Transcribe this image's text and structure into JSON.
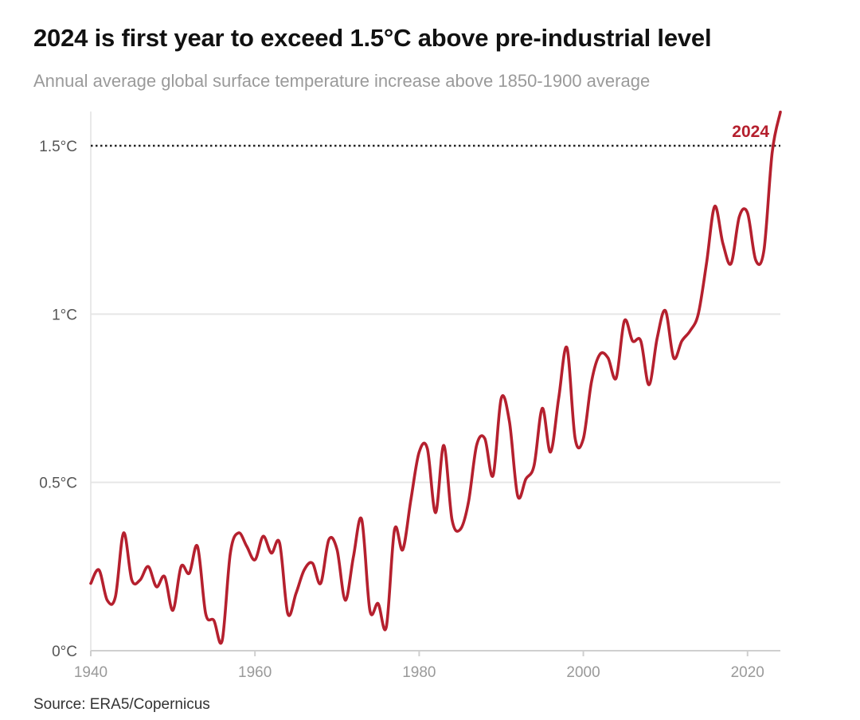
{
  "header": {
    "title": "2024 is first year to exceed 1.5°C above pre-industrial level",
    "subtitle": "Annual average global surface temperature increase above 1850-1900 average"
  },
  "footer": {
    "source": "Source: ERA5/Copernicus"
  },
  "colors": {
    "line": "#b5202e",
    "grid": "#e6e6e6",
    "threshold": "#222222"
  },
  "chart_data": {
    "type": "line",
    "title": "2024 is first year to exceed 1.5°C above pre-industrial level",
    "subtitle": "Annual average global surface temperature increase above 1850-1900 average",
    "xlabel": "",
    "ylabel": "",
    "xlim": [
      1940,
      2024
    ],
    "ylim": [
      0,
      1.6
    ],
    "grid": true,
    "y_ticks": [
      0,
      0.5,
      1,
      1.5
    ],
    "y_tick_labels": [
      "0°C",
      "0.5°C",
      "1°C",
      "1.5°C"
    ],
    "x_ticks": [
      1940,
      1960,
      1980,
      2000,
      2020
    ],
    "x_tick_labels": [
      "1940",
      "1960",
      "1980",
      "2000",
      "2020"
    ],
    "threshold": {
      "value": 1.5,
      "style": "dotted"
    },
    "annotation": {
      "text": "2024",
      "x": 2024,
      "y": 1.6
    },
    "x": [
      1940,
      1941,
      1942,
      1943,
      1944,
      1945,
      1946,
      1947,
      1948,
      1949,
      1950,
      1951,
      1952,
      1953,
      1954,
      1955,
      1956,
      1957,
      1958,
      1959,
      1960,
      1961,
      1962,
      1963,
      1964,
      1965,
      1966,
      1967,
      1968,
      1969,
      1970,
      1971,
      1972,
      1973,
      1974,
      1975,
      1976,
      1977,
      1978,
      1979,
      1980,
      1981,
      1982,
      1983,
      1984,
      1985,
      1986,
      1987,
      1988,
      1989,
      1990,
      1991,
      1992,
      1993,
      1994,
      1995,
      1996,
      1997,
      1998,
      1999,
      2000,
      2001,
      2002,
      2003,
      2004,
      2005,
      2006,
      2007,
      2008,
      2009,
      2010,
      2011,
      2012,
      2013,
      2014,
      2015,
      2016,
      2017,
      2018,
      2019,
      2020,
      2021,
      2022,
      2023,
      2024
    ],
    "series": [
      {
        "values": [
          0.2,
          0.24,
          0.15,
          0.16,
          0.35,
          0.21,
          0.21,
          0.25,
          0.19,
          0.22,
          0.12,
          0.25,
          0.23,
          0.31,
          0.11,
          0.09,
          0.03,
          0.29,
          0.35,
          0.31,
          0.27,
          0.34,
          0.29,
          0.32,
          0.11,
          0.17,
          0.24,
          0.26,
          0.2,
          0.33,
          0.3,
          0.15,
          0.28,
          0.39,
          0.12,
          0.14,
          0.07,
          0.36,
          0.3,
          0.45,
          0.59,
          0.6,
          0.41,
          0.61,
          0.39,
          0.36,
          0.44,
          0.61,
          0.63,
          0.52,
          0.75,
          0.68,
          0.46,
          0.51,
          0.55,
          0.72,
          0.59,
          0.75,
          0.9,
          0.63,
          0.63,
          0.8,
          0.88,
          0.87,
          0.81,
          0.98,
          0.92,
          0.92,
          0.79,
          0.93,
          1.01,
          0.87,
          0.92,
          0.95,
          1.0,
          1.15,
          1.32,
          1.21,
          1.15,
          1.29,
          1.3,
          1.16,
          1.19,
          1.48,
          1.6
        ]
      }
    ]
  }
}
